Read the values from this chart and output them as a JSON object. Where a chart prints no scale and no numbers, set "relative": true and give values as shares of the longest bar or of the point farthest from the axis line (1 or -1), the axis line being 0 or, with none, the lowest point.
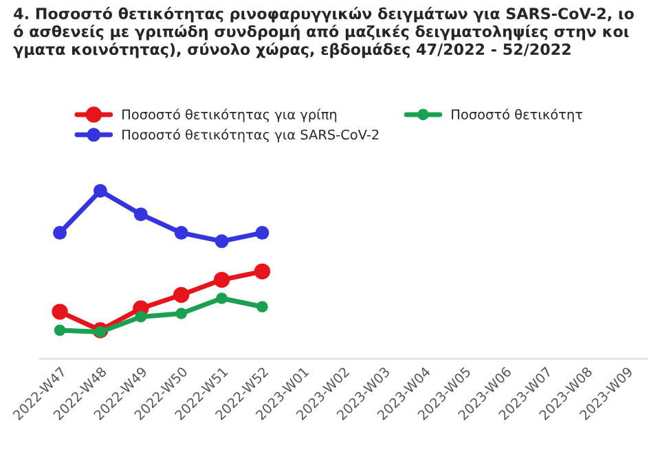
{
  "chart_data": {
    "type": "line",
    "relative": true,
    "title": "4. Ποσοστό θετικότητας ρινοφαρυγγικών δειγμάτων για SARS-CoV-2, ιο\nό ασθενείς με γριπώδη συνδρομή από μαζικές δειγματοληψίες στην κοι\nγματα κοινότητας), σύνολο χώρας, εβδομάδες 47/2022 - 52/2022",
    "categories": [
      "2022-W47",
      "2022-W48",
      "2022-W49",
      "2022-W50",
      "2022-W51",
      "2022-W52",
      "2023-W01",
      "2023-W02",
      "2023-W03",
      "2023-W04",
      "2023-W05",
      "2023-W06",
      "2023-W07",
      "2023-W08",
      "2023-W09"
    ],
    "series": [
      {
        "name": "Ποσοστό θετικότητας για γρίπη",
        "color": "#e8141b",
        "values": [
          0.28,
          0.17,
          0.3,
          0.38,
          0.47,
          0.52,
          null,
          null,
          null,
          null,
          null,
          null,
          null,
          null,
          null
        ]
      },
      {
        "name": "Ποσοστό θετικότητας για SARS-CoV-2",
        "color": "#3535e0",
        "values": [
          0.75,
          1.0,
          0.86,
          0.75,
          0.7,
          0.75,
          null,
          null,
          null,
          null,
          null,
          null,
          null,
          null,
          null
        ]
      },
      {
        "name": "Ποσοστό θετικότητ",
        "color": "#1aa050",
        "values": [
          0.17,
          0.16,
          0.25,
          0.27,
          0.36,
          0.31,
          null,
          null,
          null,
          null,
          null,
          null,
          null,
          null,
          null
        ]
      }
    ],
    "marker": "circle",
    "line_style": "solid",
    "legend": "top",
    "grid": false
  }
}
